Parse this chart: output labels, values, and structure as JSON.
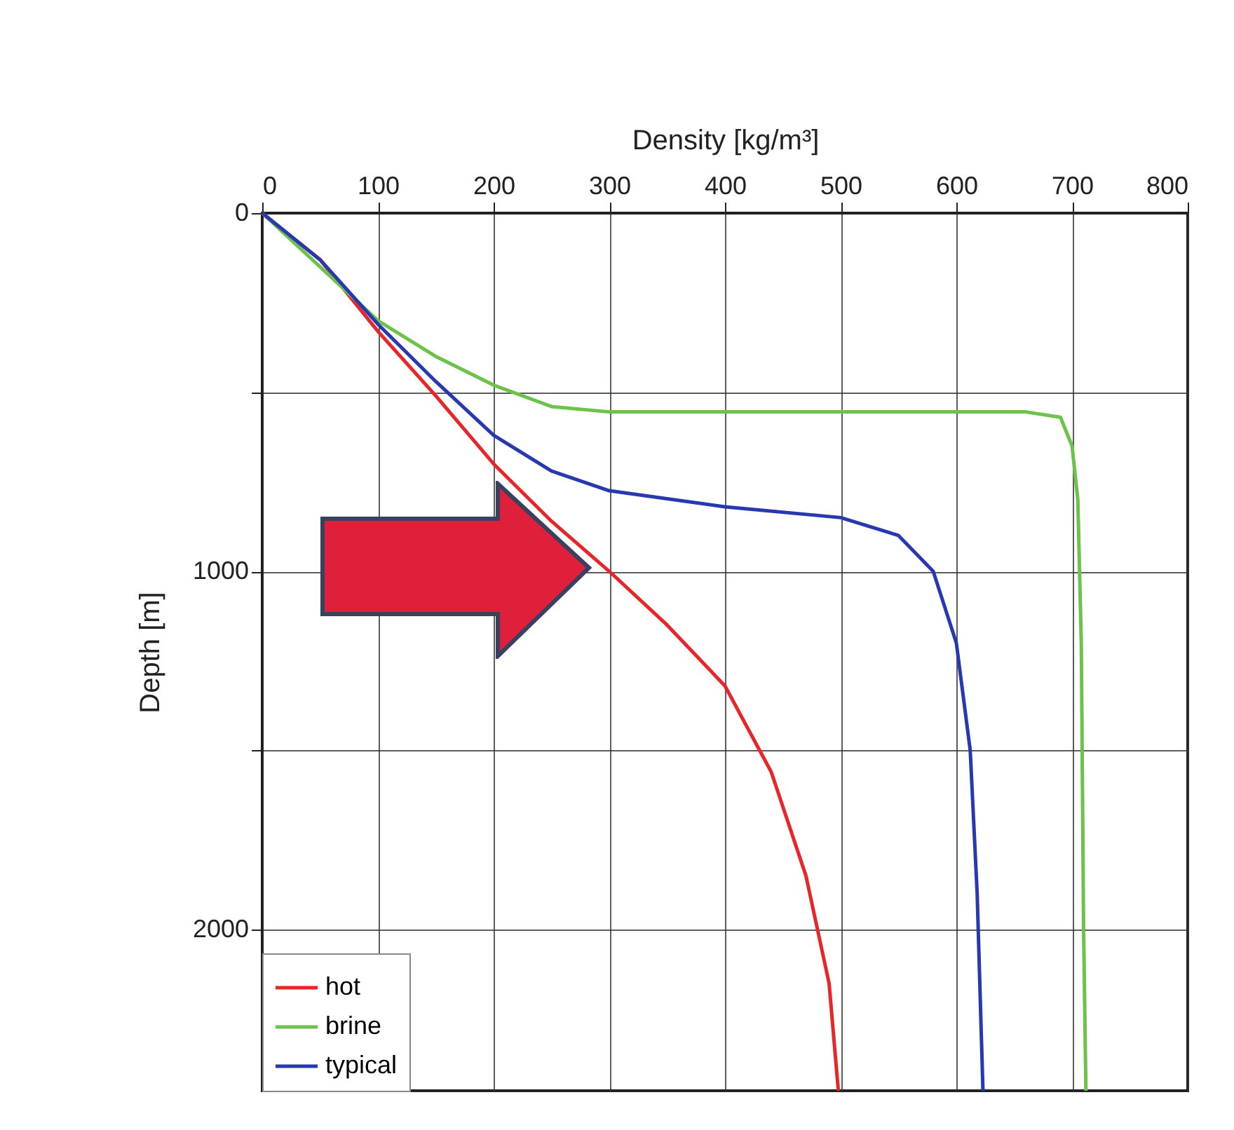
{
  "chart_data": {
    "type": "line",
    "xlabel": "Density [kg/m³]",
    "ylabel": "Depth [m]",
    "xlim": [
      0,
      800
    ],
    "xticks": [
      0,
      100,
      200,
      300,
      400,
      500,
      600,
      700,
      800
    ],
    "ylim": [
      2450,
      0
    ],
    "yticks": [
      0,
      {
        "value": 500,
        "label": null
      },
      1000,
      {
        "value": 1500,
        "label": null
      },
      2000
    ],
    "grid": true,
    "legend": "bottom left",
    "marker": "none",
    "line_style": "solid",
    "series": [
      {
        "name": "hot",
        "color": "#e8262a",
        "x": [
          0,
          50,
          100,
          150,
          200,
          250,
          300,
          350,
          400,
          440,
          470,
          490,
          498
        ],
        "values": [
          0,
          130,
          330,
          510,
          700,
          860,
          1000,
          1150,
          1320,
          1560,
          1850,
          2150,
          2450
        ]
      },
      {
        "name": "brine",
        "color": "#6cc24a",
        "x": [
          0,
          50,
          100,
          150,
          200,
          250,
          300,
          660,
          690,
          700,
          705,
          708,
          710,
          712
        ],
        "values": [
          0,
          150,
          300,
          400,
          480,
          540,
          555,
          555,
          570,
          650,
          800,
          1200,
          2000,
          2450
        ]
      },
      {
        "name": "typical",
        "color": "#2838b0",
        "x": [
          0,
          50,
          100,
          150,
          200,
          250,
          300,
          400,
          500,
          550,
          580,
          600,
          612,
          618,
          623
        ],
        "values": [
          0,
          130,
          310,
          470,
          620,
          720,
          775,
          820,
          850,
          900,
          1000,
          1200,
          1500,
          1900,
          2450
        ]
      }
    ]
  }
}
